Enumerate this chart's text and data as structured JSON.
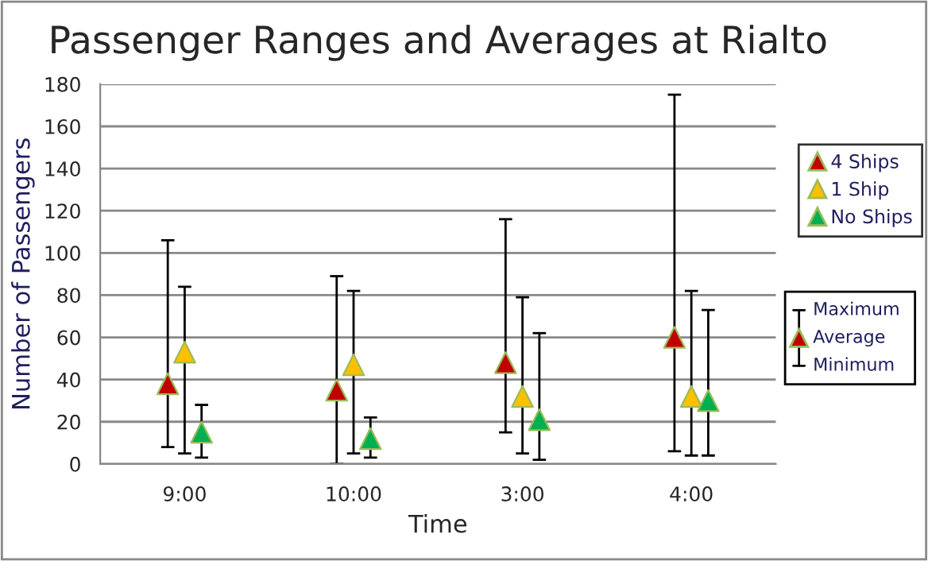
{
  "chart_data": {
    "type": "scatter",
    "title": "Passenger Ranges and Averages at Rialto",
    "xlabel": "Time",
    "ylabel": "Number of Passengers",
    "categories": [
      "9:00",
      "10:00",
      "3:00",
      "4:00"
    ],
    "series": [
      {
        "name": "4 Ships",
        "color": "#c00000",
        "values": [
          38,
          35,
          48,
          60
        ],
        "errors": [
          [
            8,
            106
          ],
          [
            0,
            89
          ],
          [
            15,
            116
          ],
          [
            6,
            175
          ]
        ]
      },
      {
        "name": "1 Ship",
        "color": "#ffc000",
        "values": [
          53,
          47,
          32,
          32
        ],
        "errors": [
          [
            5,
            84
          ],
          [
            5,
            82
          ],
          [
            5,
            79
          ],
          [
            4,
            82
          ]
        ]
      },
      {
        "name": "No Ships",
        "color": "#00b050",
        "values": [
          15,
          12,
          21,
          30
        ],
        "errors": [
          [
            3,
            28
          ],
          [
            3,
            22
          ],
          [
            2,
            62
          ],
          [
            4,
            73
          ]
        ]
      }
    ],
    "annotations": [
      "Maximum",
      "Average",
      "Minimum"
    ],
    "ylim": [
      0,
      180
    ],
    "yticks": [
      0,
      20,
      40,
      60,
      80,
      100,
      120,
      140,
      160,
      180
    ],
    "grid": "y",
    "legend": "right",
    "marker": "triangle"
  }
}
